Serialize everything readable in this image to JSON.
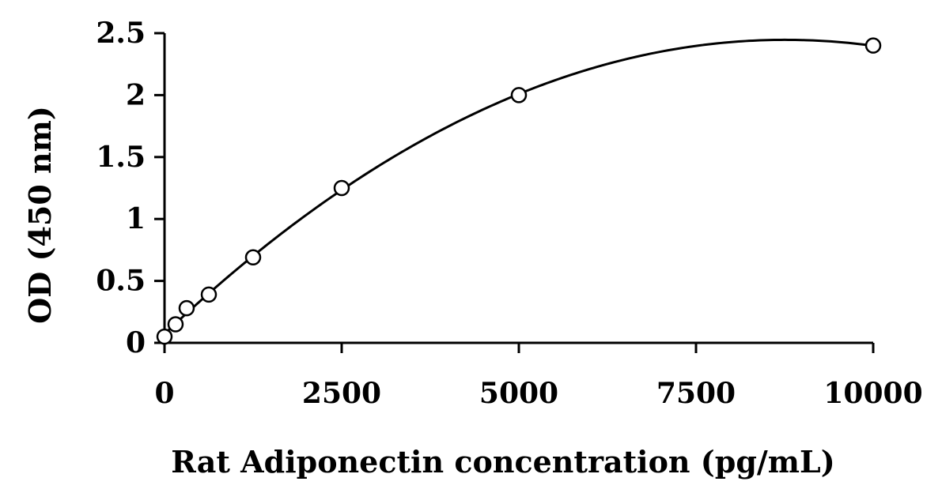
{
  "chart_data": {
    "type": "scatter",
    "title": "",
    "xlabel": "Rat Adiponectin concentration (pg/mL)",
    "ylabel": "OD (450 nm)",
    "xlim": [
      0,
      10000
    ],
    "ylim": [
      0,
      2.5
    ],
    "x_ticks": [
      "0",
      "2500",
      "5000",
      "7500",
      "10000"
    ],
    "y_ticks": [
      "0",
      "0.5",
      "1",
      "1.5",
      "2",
      "2.5"
    ],
    "grid": false,
    "legend": "none",
    "marker": "open-circle",
    "fit": "second-order polynomial curve",
    "series": [
      {
        "points": [
          {
            "x": 0,
            "y": 0.05
          },
          {
            "x": 156,
            "y": 0.15
          },
          {
            "x": 312,
            "y": 0.28
          },
          {
            "x": 625,
            "y": 0.39
          },
          {
            "x": 1250,
            "y": 0.69
          },
          {
            "x": 2500,
            "y": 1.25
          },
          {
            "x": 5000,
            "y": 2.0
          },
          {
            "x": 10000,
            "y": 2.4
          }
        ]
      }
    ],
    "colors": {
      "line": "#000000",
      "marker_fill": "#ffffff"
    }
  }
}
